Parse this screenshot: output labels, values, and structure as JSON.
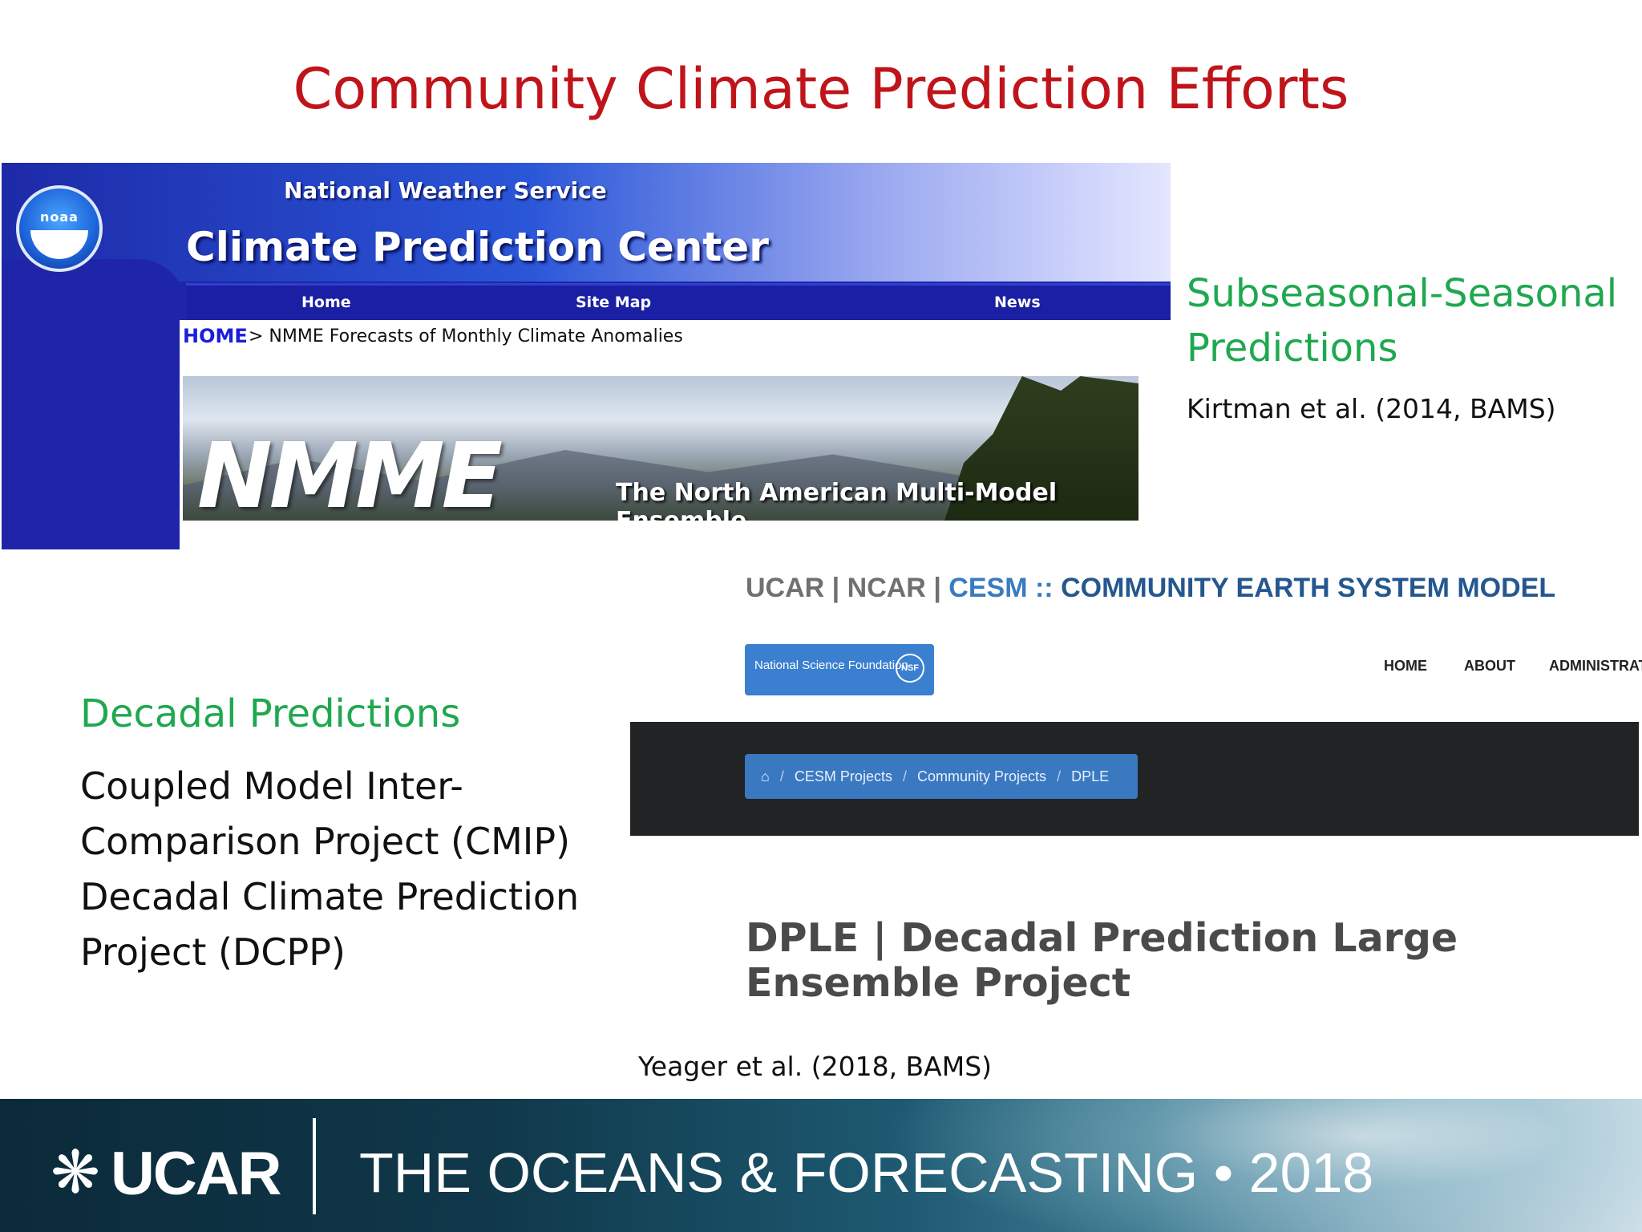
{
  "slide": {
    "title": "Community Climate Prediction Efforts"
  },
  "cpc_screenshot": {
    "noaa_logo_text": "noaa",
    "agency": "National Weather Service",
    "site_title": "Climate Prediction Center",
    "nav": [
      "Home",
      "Site Map",
      "News"
    ],
    "breadcrumb_home": "HOME",
    "breadcrumb_rest": "> NMME Forecasts of Monthly Climate Anomalies",
    "banner_logo": "NMME",
    "banner_tagline": "The North American Multi-Model Ensemble"
  },
  "subseasonal": {
    "heading": "Subseasonal-Seasonal Predictions",
    "reference": "Kirtman et al. (2014, BAMS)"
  },
  "cesm_screenshot": {
    "topbar": {
      "ucar": "UCAR",
      "sep1": "|",
      "ncar": "NCAR",
      "sep2": "|",
      "cesm": "CESM",
      "sep3": "::",
      "full_name": "COMMUNITY EARTH SYSTEM MODEL"
    },
    "nsf_badge": "National Science Foundation",
    "nsf_seal": "NSF",
    "nav": [
      "HOME",
      "ABOUT",
      "ADMINISTRAT"
    ],
    "breadcrumb": [
      "CESM Projects",
      "Community Projects",
      "DPLE"
    ],
    "page_title": "DPLE | Decadal Prediction Large Ensemble Project"
  },
  "decadal": {
    "heading": "Decadal Predictions",
    "items": [
      "Coupled Model Inter-Comparison Project (CMIP)",
      "Decadal Climate Prediction Project (DCPP)"
    ],
    "reference": "Yeager et al. (2018, BAMS)"
  },
  "footer": {
    "org": "UCAR",
    "event": "THE OCEANS & FORECASTING • 2018"
  }
}
